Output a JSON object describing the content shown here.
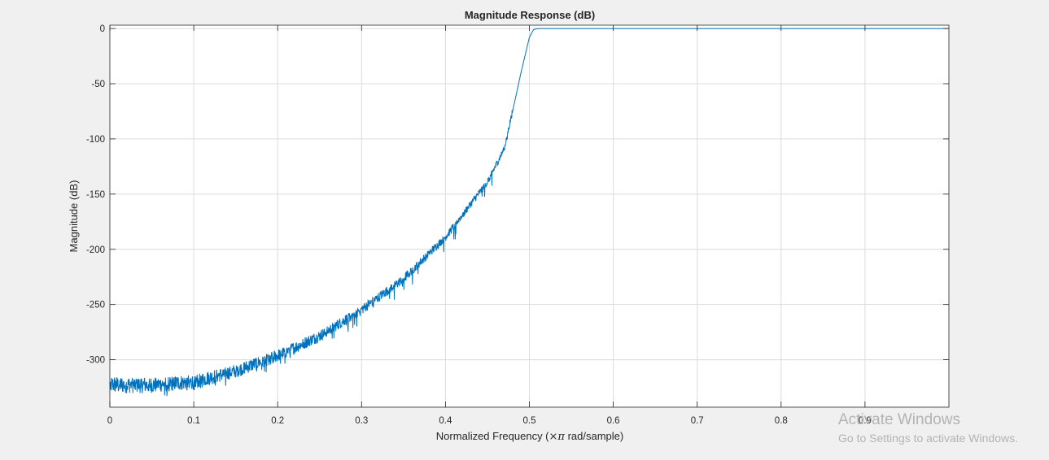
{
  "chart_data": {
    "type": "line",
    "title": "Magnitude Response (dB)",
    "xlabel_prefix": "Normalized Frequency (",
    "xlabel_symbol": "×π",
    "xlabel_suffix": " rad/sample)",
    "ylabel": "Magnitude (dB)",
    "xlim": [
      0,
      1
    ],
    "ylim": [
      -343,
      3
    ],
    "xticks": [
      0,
      0.1,
      0.2,
      0.3,
      0.4,
      0.5,
      0.6,
      0.7,
      0.8,
      0.9
    ],
    "xtick_labels": [
      "0",
      "0.1",
      "0.2",
      "0.3",
      "0.4",
      "0.5",
      "0.6",
      "0.7",
      "0.8",
      "0.9"
    ],
    "yticks": [
      0,
      -50,
      -100,
      -150,
      -200,
      -250,
      -300
    ],
    "ytick_labels": [
      "0",
      "-50",
      "-100",
      "-150",
      "-200",
      "-250",
      "-300"
    ],
    "grid": true,
    "line_color": "#0072bd",
    "series": [
      {
        "x": [
          0,
          0.05,
          0.1,
          0.15,
          0.2,
          0.25,
          0.3,
          0.35,
          0.4,
          0.45,
          0.47,
          0.48,
          0.49,
          0.5,
          0.505,
          0.51,
          0.6,
          0.7,
          0.8,
          0.9,
          1.0
        ],
        "y": [
          -325,
          -325,
          -322,
          -312,
          -298,
          -280,
          -256,
          -228,
          -190,
          -140,
          -110,
          -75,
          -40,
          -8,
          -1,
          0,
          0,
          0,
          0,
          0,
          0
        ]
      }
    ]
  },
  "watermark": {
    "title": "Activate Windows",
    "subtitle": "Go to Settings to activate Windows."
  }
}
